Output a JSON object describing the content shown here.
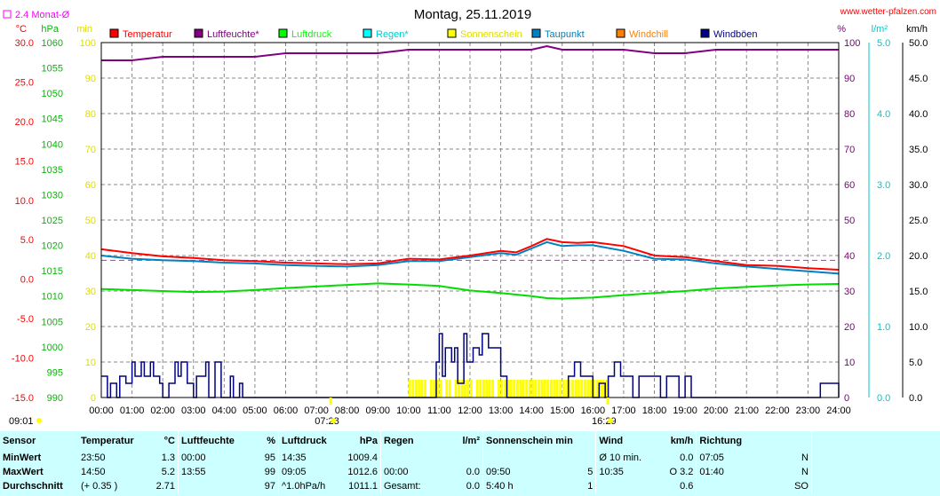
{
  "chart_data": {
    "type": "line",
    "title": "Montag, 25.11.2019",
    "source": "www.wetter-pfalzen.com",
    "avg_legend": "2.4 Monat-Ø",
    "axes": {
      "temp": {
        "unit": "°C",
        "range": [
          -15,
          30
        ],
        "ticks": [
          "30.0",
          "25.0",
          "20.0",
          "15.0",
          "10.0",
          "5.0",
          "0.0",
          "-5.0",
          "-10.0",
          "-15.0"
        ],
        "color": "#ff0000"
      },
      "pressure": {
        "unit": "hPa",
        "range": [
          990,
          1060
        ],
        "ticks": [
          "1060",
          "1055",
          "1050",
          "1045",
          "1040",
          "1035",
          "1030",
          "1025",
          "1020",
          "1015",
          "1010",
          "1005",
          "1000",
          "995",
          "990"
        ],
        "color": "#00bb00"
      },
      "sunshine": {
        "unit": "min",
        "range": [
          0,
          100
        ],
        "ticks": [
          "100",
          "90",
          "80",
          "70",
          "60",
          "50",
          "40",
          "30",
          "20",
          "10",
          "0"
        ],
        "color": "#dddd00"
      },
      "humidity": {
        "unit": "%",
        "range": [
          0,
          100
        ],
        "ticks": [
          "100",
          "90",
          "80",
          "70",
          "60",
          "50",
          "40",
          "30",
          "20",
          "10",
          "0"
        ],
        "color": "#800080"
      },
      "rain": {
        "unit": "l/m²",
        "range": [
          0,
          5
        ],
        "ticks": [
          "5.0",
          "4.0",
          "3.0",
          "2.0",
          "1.0",
          "0.0"
        ],
        "color": "#00c8c8"
      },
      "wind": {
        "unit": "km/h",
        "range": [
          0,
          50
        ],
        "ticks": [
          "50.0",
          "45.0",
          "40.0",
          "35.0",
          "30.0",
          "25.0",
          "20.0",
          "15.0",
          "10.0",
          "5.0",
          "0.0"
        ],
        "color": "#000000"
      }
    },
    "x_ticks": [
      "00:00",
      "01:00",
      "02:00",
      "03:00",
      "04:00",
      "05:00",
      "06:00",
      "07:00",
      "08:00",
      "09:00",
      "10:00",
      "11:00",
      "12:00",
      "13:00",
      "14:00",
      "15:00",
      "16:00",
      "17:00",
      "18:00",
      "19:00",
      "20:00",
      "21:00",
      "22:00",
      "23:00",
      "24:00"
    ],
    "sunrise": "07:28",
    "sunset": "16:29",
    "left_marker": "09:01",
    "legend": [
      {
        "name": "Temperatur",
        "color": "#ff0000"
      },
      {
        "name": "Luftfeuchte*",
        "color": "#800080"
      },
      {
        "name": "Luftdruck",
        "color": "#00ff00"
      },
      {
        "name": "Regen*",
        "color": "#00ffff",
        "text_color": "#00cccc"
      },
      {
        "name": "Sonnenschein",
        "color": "#ffff00",
        "text_color": "#dddd00"
      },
      {
        "name": "Taupunkt",
        "color": "#0080c0"
      },
      {
        "name": "Windchill",
        "color": "#ff8000"
      },
      {
        "name": "Windböen",
        "color": "#000080"
      }
    ],
    "temp_avg_line": 2.4,
    "series": [
      {
        "name": "Temperatur",
        "axis": "temp",
        "x_hours": [
          0,
          1,
          2,
          3,
          4,
          5,
          6,
          7,
          8,
          9,
          10,
          11,
          12,
          13,
          13.5,
          14,
          14.5,
          15,
          15.5,
          16,
          17,
          18,
          19,
          20,
          21,
          22,
          23,
          24
        ],
        "values": [
          3.8,
          3.3,
          2.9,
          2.7,
          2.4,
          2.3,
          2.1,
          2.0,
          1.9,
          2.0,
          2.6,
          2.5,
          3.0,
          3.6,
          3.4,
          4.2,
          5.1,
          4.7,
          4.6,
          4.7,
          4.2,
          3.0,
          2.8,
          2.3,
          1.8,
          1.7,
          1.4,
          1.2
        ]
      },
      {
        "name": "Taupunkt",
        "axis": "temp",
        "x_hours": [
          0,
          1,
          2,
          3,
          4,
          5,
          6,
          7,
          8,
          9,
          10,
          11,
          12,
          13,
          13.5,
          14,
          14.5,
          15,
          15.5,
          16,
          17,
          18,
          19,
          20,
          21,
          22,
          23,
          24
        ],
        "values": [
          3.0,
          2.6,
          2.4,
          2.3,
          2.1,
          2.0,
          1.8,
          1.7,
          1.6,
          1.8,
          2.3,
          2.3,
          2.8,
          3.3,
          3.1,
          3.9,
          4.7,
          4.2,
          4.3,
          4.3,
          3.6,
          2.6,
          2.5,
          2.0,
          1.6,
          1.3,
          1.0,
          0.7
        ]
      },
      {
        "name": "Luftfeuchte*",
        "axis": "humidity",
        "x_hours": [
          0,
          1,
          2,
          3,
          4,
          5,
          6,
          7,
          8,
          9,
          10,
          11,
          12,
          13,
          14,
          14.5,
          15,
          16,
          17,
          18,
          19,
          20,
          21,
          22,
          23,
          24
        ],
        "values": [
          95,
          95,
          96,
          96,
          96,
          96,
          97,
          97,
          97,
          97,
          98,
          98,
          98,
          98,
          98,
          99,
          98,
          98,
          98,
          97,
          97,
          98,
          98,
          98,
          98,
          98
        ]
      },
      {
        "name": "Luftdruck",
        "axis": "pressure",
        "x_hours": [
          0,
          1,
          2,
          3,
          4,
          5,
          6,
          7,
          8,
          9,
          10,
          11,
          12,
          13,
          14,
          14.5,
          15,
          16,
          17,
          18,
          19,
          20,
          21,
          22,
          23,
          24
        ],
        "values": [
          1011.4,
          1011.2,
          1011.0,
          1010.8,
          1010.9,
          1011.2,
          1011.6,
          1011.9,
          1012.2,
          1012.5,
          1012.3,
          1012.0,
          1011.1,
          1010.6,
          1010.0,
          1009.6,
          1009.5,
          1009.7,
          1010.2,
          1010.6,
          1011.0,
          1011.5,
          1011.8,
          1012.1,
          1012.3,
          1012.4
        ]
      },
      {
        "name": "Windböen",
        "axis": "wind",
        "x_hours": [
          0,
          0.2,
          0.3,
          0.5,
          0.6,
          0.8,
          1.0,
          1.1,
          1.3,
          1.4,
          1.6,
          1.7,
          1.9,
          2.0,
          2.2,
          2.4,
          2.5,
          2.6,
          2.8,
          3.0,
          3.1,
          3.2,
          3.4,
          3.5,
          3.7,
          3.9,
          4.0,
          4.2,
          4.3,
          4.5,
          4.6,
          4.7,
          10.6,
          10.9,
          11.0,
          11.1,
          11.2,
          11.4,
          11.5,
          11.6,
          11.8,
          11.9,
          12.1,
          12.3,
          12.4,
          12.6,
          12.8,
          13.0,
          13.2,
          15.0,
          15.2,
          15.4,
          15.6,
          15.8,
          16.0,
          16.2,
          16.4,
          16.5,
          16.7,
          16.9,
          17.1,
          17.3,
          17.5,
          17.6,
          17.8,
          18.0,
          18.2,
          18.4,
          18.6,
          18.8,
          19.0,
          19.2,
          22.8,
          23.0,
          23.2,
          23.4,
          24
        ],
        "values": [
          3,
          0,
          2,
          0,
          3,
          2,
          5,
          3,
          5,
          3,
          5,
          3,
          2,
          0,
          2,
          5,
          3,
          5,
          2,
          0,
          3,
          3,
          5,
          0,
          5,
          0,
          0,
          3,
          0,
          2,
          0,
          0,
          0,
          5,
          9,
          3,
          7,
          5,
          7,
          2,
          9,
          5,
          7,
          6,
          9,
          7,
          7,
          3,
          0,
          0,
          3,
          5,
          3,
          3,
          0,
          2,
          0,
          3,
          5,
          3,
          3,
          0,
          3,
          3,
          3,
          3,
          0,
          3,
          3,
          0,
          3,
          0,
          0,
          0,
          0,
          2,
          0
        ]
      },
      {
        "name": "Sonnenschein",
        "axis": "sunshine",
        "type": "bar",
        "x_hours": [
          10.0,
          10.1,
          10.2,
          10.3,
          10.4,
          10.5,
          10.6,
          10.7,
          10.8,
          10.9,
          11.0,
          11.1,
          11.2,
          11.3,
          11.4,
          11.5,
          11.6,
          11.7,
          11.8,
          11.9,
          12.0,
          12.1,
          12.2,
          12.3,
          12.4,
          12.5,
          12.6,
          12.7,
          12.8,
          12.9,
          13.0,
          13.1,
          13.2,
          13.3,
          13.4,
          13.5,
          13.6,
          13.7,
          13.8,
          13.9,
          14.0,
          14.1,
          14.2,
          14.3,
          14.4,
          14.5,
          14.6,
          14.7,
          14.8,
          14.9,
          15.0,
          15.1,
          15.2,
          15.3,
          15.4,
          15.5,
          15.6,
          15.7,
          15.8,
          15.9,
          16.0,
          16.1,
          16.2,
          16.3,
          16.4
        ],
        "values": [
          5,
          5,
          5,
          5,
          5,
          5,
          0,
          5,
          5,
          5,
          5,
          0,
          5,
          5,
          0,
          5,
          5,
          5,
          5,
          5,
          5,
          0,
          5,
          5,
          5,
          5,
          5,
          5,
          0,
          5,
          5,
          5,
          5,
          5,
          5,
          5,
          5,
          5,
          5,
          5,
          5,
          5,
          5,
          5,
          5,
          5,
          5,
          5,
          5,
          5,
          5,
          5,
          5,
          5,
          5,
          5,
          5,
          5,
          5,
          5,
          5,
          5,
          5,
          5,
          5
        ]
      }
    ]
  },
  "stats": {
    "header": [
      "Sensor",
      "Temperatur",
      "°C",
      "Luftfeuchte",
      "%",
      "Luftdruck",
      "hPa",
      "Regen",
      "l/m²",
      "Sonnenschein min",
      "Wind",
      "km/h",
      "Richtung"
    ],
    "rows": [
      [
        "MinWert",
        "23:50",
        "1.3",
        "00:00",
        "95",
        "14:35",
        "1009.4",
        "",
        "",
        "",
        "Ø 10 min.",
        "0.0",
        "07:05",
        "N"
      ],
      [
        "MaxWert",
        "14:50",
        "5.2",
        "13:55",
        "99",
        "09:05",
        "1012.6",
        "00:00",
        "0.0",
        "09:50",
        "5",
        "10:35",
        "O 3.2",
        "01:40",
        "N"
      ],
      [
        "Durchschnitt",
        "(+ 0.35 )",
        "2.71",
        "",
        "97",
        "^1.0hPa/h",
        "1011.1",
        "Gesamt:",
        "0.0",
        "5:40 h",
        "1",
        "",
        "0.6",
        "",
        "SO"
      ]
    ]
  }
}
